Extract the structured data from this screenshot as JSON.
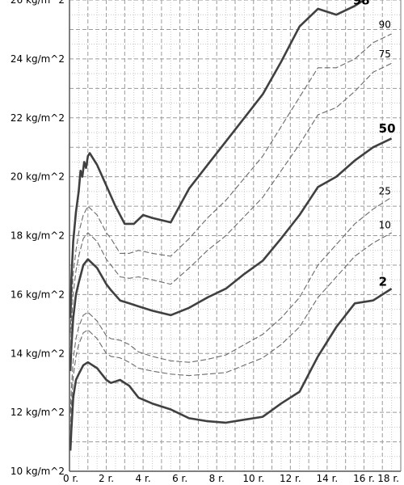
{
  "chart_data": {
    "type": "line",
    "title": "",
    "xlabel": "",
    "ylabel": "",
    "xlim": [
      0,
      18
    ],
    "ylim": [
      10,
      26
    ],
    "grid": true,
    "x_ticks": [
      {
        "value": 0,
        "label": "0 r."
      },
      {
        "value": 2,
        "label": "2 r."
      },
      {
        "value": 4,
        "label": "4 r."
      },
      {
        "value": 6,
        "label": "6 r."
      },
      {
        "value": 8,
        "label": "8 r."
      },
      {
        "value": 10,
        "label": "10 r."
      },
      {
        "value": 12,
        "label": "12 r."
      },
      {
        "value": 14,
        "label": "14 r."
      },
      {
        "value": 16,
        "label": "16 r."
      },
      {
        "value": 18,
        "label": "18 r."
      }
    ],
    "y_ticks": [
      {
        "value": 10,
        "label": "10 kg/m^2"
      },
      {
        "value": 12,
        "label": "12 kg/m^2"
      },
      {
        "value": 14,
        "label": "14 kg/m^2"
      },
      {
        "value": 16,
        "label": "16 kg/m^2"
      },
      {
        "value": 18,
        "label": "18 kg/m^2"
      },
      {
        "value": 20,
        "label": "20 kg/m^2"
      },
      {
        "value": 22,
        "label": "22 kg/m^2"
      },
      {
        "value": 24,
        "label": "24 kg/m^2"
      },
      {
        "value": 26,
        "label": "26 kg/m^2"
      }
    ],
    "series": [
      {
        "name": "2",
        "emphasis": true,
        "points": [
          [
            0.05,
            10.7
          ],
          [
            0.1,
            11.4
          ],
          [
            0.2,
            12.5
          ],
          [
            0.35,
            13.1
          ],
          [
            0.5,
            13.3
          ],
          [
            0.75,
            13.6
          ],
          [
            1,
            13.7
          ],
          [
            1.5,
            13.5
          ],
          [
            2,
            13.1
          ],
          [
            2.25,
            13.0
          ],
          [
            2.75,
            13.1
          ],
          [
            3.25,
            12.9
          ],
          [
            3.75,
            12.5
          ],
          [
            4.5,
            12.3
          ],
          [
            5.5,
            12.1
          ],
          [
            6.5,
            11.8
          ],
          [
            7.5,
            11.7
          ],
          [
            8.5,
            11.65
          ],
          [
            9.5,
            11.75
          ],
          [
            10.5,
            11.85
          ],
          [
            11.5,
            12.3
          ],
          [
            12.5,
            12.7
          ],
          [
            13.5,
            13.9
          ],
          [
            14.5,
            14.9
          ],
          [
            15.5,
            15.7
          ],
          [
            16.5,
            15.8
          ],
          [
            17.5,
            16.2
          ]
        ]
      },
      {
        "name": "10",
        "emphasis": false,
        "points": [
          [
            0.05,
            11.4
          ],
          [
            0.1,
            12.2
          ],
          [
            0.2,
            13.2
          ],
          [
            0.35,
            13.9
          ],
          [
            0.5,
            14.3
          ],
          [
            0.75,
            14.7
          ],
          [
            1,
            14.8
          ],
          [
            1.5,
            14.5
          ],
          [
            2,
            14.0
          ],
          [
            2.25,
            13.9
          ],
          [
            2.75,
            13.85
          ],
          [
            3.25,
            13.7
          ],
          [
            3.75,
            13.5
          ],
          [
            4.5,
            13.4
          ],
          [
            5.5,
            13.3
          ],
          [
            6.5,
            13.25
          ],
          [
            7.5,
            13.3
          ],
          [
            8.5,
            13.35
          ],
          [
            9.5,
            13.6
          ],
          [
            10.5,
            13.85
          ],
          [
            11.5,
            14.3
          ],
          [
            12.5,
            14.9
          ],
          [
            13.5,
            15.9
          ],
          [
            14.5,
            16.6
          ],
          [
            15.5,
            17.3
          ],
          [
            16.5,
            17.75
          ],
          [
            17.5,
            18.1
          ]
        ]
      },
      {
        "name": "25",
        "emphasis": false,
        "points": [
          [
            0.05,
            12.0
          ],
          [
            0.1,
            12.8
          ],
          [
            0.2,
            13.8
          ],
          [
            0.35,
            14.5
          ],
          [
            0.5,
            14.9
          ],
          [
            0.75,
            15.3
          ],
          [
            1,
            15.4
          ],
          [
            1.5,
            15.1
          ],
          [
            2,
            14.6
          ],
          [
            2.25,
            14.5
          ],
          [
            2.75,
            14.45
          ],
          [
            3.25,
            14.3
          ],
          [
            3.75,
            14.05
          ],
          [
            4.5,
            13.9
          ],
          [
            5.5,
            13.75
          ],
          [
            6.5,
            13.7
          ],
          [
            7.5,
            13.8
          ],
          [
            8.5,
            13.95
          ],
          [
            9.5,
            14.3
          ],
          [
            10.5,
            14.65
          ],
          [
            11.5,
            15.2
          ],
          [
            12.5,
            15.9
          ],
          [
            13.5,
            17.0
          ],
          [
            14.5,
            17.7
          ],
          [
            15.5,
            18.4
          ],
          [
            16.5,
            18.9
          ],
          [
            17.5,
            19.3
          ]
        ]
      },
      {
        "name": "50",
        "emphasis": true,
        "points": [
          [
            0.05,
            13.4
          ],
          [
            0.1,
            14.2
          ],
          [
            0.2,
            15.2
          ],
          [
            0.35,
            16.0
          ],
          [
            0.5,
            16.4
          ],
          [
            0.75,
            17.0
          ],
          [
            1,
            17.2
          ],
          [
            1.5,
            16.9
          ],
          [
            2,
            16.35
          ],
          [
            2.25,
            16.15
          ],
          [
            2.75,
            15.8
          ],
          [
            3.25,
            15.7
          ],
          [
            3.75,
            15.6
          ],
          [
            4.5,
            15.45
          ],
          [
            5.5,
            15.3
          ],
          [
            6.5,
            15.55
          ],
          [
            7.5,
            15.9
          ],
          [
            8.5,
            16.2
          ],
          [
            9.5,
            16.7
          ],
          [
            10.5,
            17.15
          ],
          [
            11.5,
            17.9
          ],
          [
            12.5,
            18.7
          ],
          [
            13.5,
            19.65
          ],
          [
            14.5,
            20.0
          ],
          [
            15.5,
            20.55
          ],
          [
            16.5,
            21.0
          ],
          [
            17.5,
            21.3
          ]
        ]
      },
      {
        "name": "75",
        "emphasis": false,
        "points": [
          [
            0.05,
            14.0
          ],
          [
            0.1,
            15.0
          ],
          [
            0.2,
            16.0
          ],
          [
            0.35,
            16.8
          ],
          [
            0.5,
            17.3
          ],
          [
            0.75,
            17.9
          ],
          [
            1,
            18.1
          ],
          [
            1.5,
            17.8
          ],
          [
            2,
            17.2
          ],
          [
            2.25,
            17.0
          ],
          [
            2.75,
            16.6
          ],
          [
            3.25,
            16.55
          ],
          [
            3.75,
            16.6
          ],
          [
            4.5,
            16.5
          ],
          [
            5.5,
            16.35
          ],
          [
            6.5,
            16.9
          ],
          [
            7.5,
            17.5
          ],
          [
            8.5,
            18.0
          ],
          [
            9.5,
            18.65
          ],
          [
            10.5,
            19.3
          ],
          [
            11.5,
            20.2
          ],
          [
            12.5,
            21.1
          ],
          [
            13.5,
            22.1
          ],
          [
            14.5,
            22.35
          ],
          [
            15.5,
            22.9
          ],
          [
            16.5,
            23.55
          ],
          [
            17.5,
            23.85
          ]
        ]
      },
      {
        "name": "90",
        "emphasis": false,
        "points": [
          [
            0.05,
            14.7
          ],
          [
            0.1,
            15.6
          ],
          [
            0.2,
            16.7
          ],
          [
            0.35,
            17.5
          ],
          [
            0.5,
            18.1
          ],
          [
            0.75,
            18.7
          ],
          [
            1,
            19.0
          ],
          [
            1.5,
            18.7
          ],
          [
            2,
            18.1
          ],
          [
            2.25,
            17.9
          ],
          [
            2.75,
            17.4
          ],
          [
            3.25,
            17.4
          ],
          [
            3.75,
            17.5
          ],
          [
            4.5,
            17.4
          ],
          [
            5.5,
            17.3
          ],
          [
            6.5,
            17.9
          ],
          [
            7.5,
            18.6
          ],
          [
            8.5,
            19.2
          ],
          [
            9.5,
            19.95
          ],
          [
            10.5,
            20.7
          ],
          [
            11.5,
            21.7
          ],
          [
            12.5,
            22.7
          ],
          [
            13.5,
            23.7
          ],
          [
            14.5,
            23.7
          ],
          [
            15.5,
            24.0
          ],
          [
            16.5,
            24.55
          ],
          [
            17.5,
            24.85
          ]
        ]
      },
      {
        "name": "98",
        "emphasis": true,
        "points": [
          [
            0.05,
            15.2
          ],
          [
            0.1,
            16.5
          ],
          [
            0.2,
            17.8
          ],
          [
            0.35,
            18.8
          ],
          [
            0.5,
            19.5
          ],
          [
            0.6,
            20.2
          ],
          [
            0.7,
            20.0
          ],
          [
            0.8,
            20.5
          ],
          [
            0.9,
            20.3
          ],
          [
            1,
            20.7
          ],
          [
            1.1,
            20.8
          ],
          [
            1.5,
            20.4
          ],
          [
            2,
            19.7
          ],
          [
            2.5,
            19.0
          ],
          [
            3,
            18.4
          ],
          [
            3.5,
            18.4
          ],
          [
            4,
            18.7
          ],
          [
            4.5,
            18.6
          ],
          [
            5.5,
            18.45
          ],
          [
            6.5,
            19.6
          ],
          [
            7.5,
            20.4
          ],
          [
            8.5,
            21.2
          ],
          [
            9.5,
            22.0
          ],
          [
            10.5,
            22.8
          ],
          [
            11.5,
            23.9
          ],
          [
            12.5,
            25.1
          ],
          [
            13.5,
            25.7
          ],
          [
            14.5,
            25.5
          ],
          [
            15.5,
            25.8
          ],
          [
            16.5,
            26.2
          ],
          [
            17.3,
            26.8
          ]
        ]
      }
    ]
  }
}
